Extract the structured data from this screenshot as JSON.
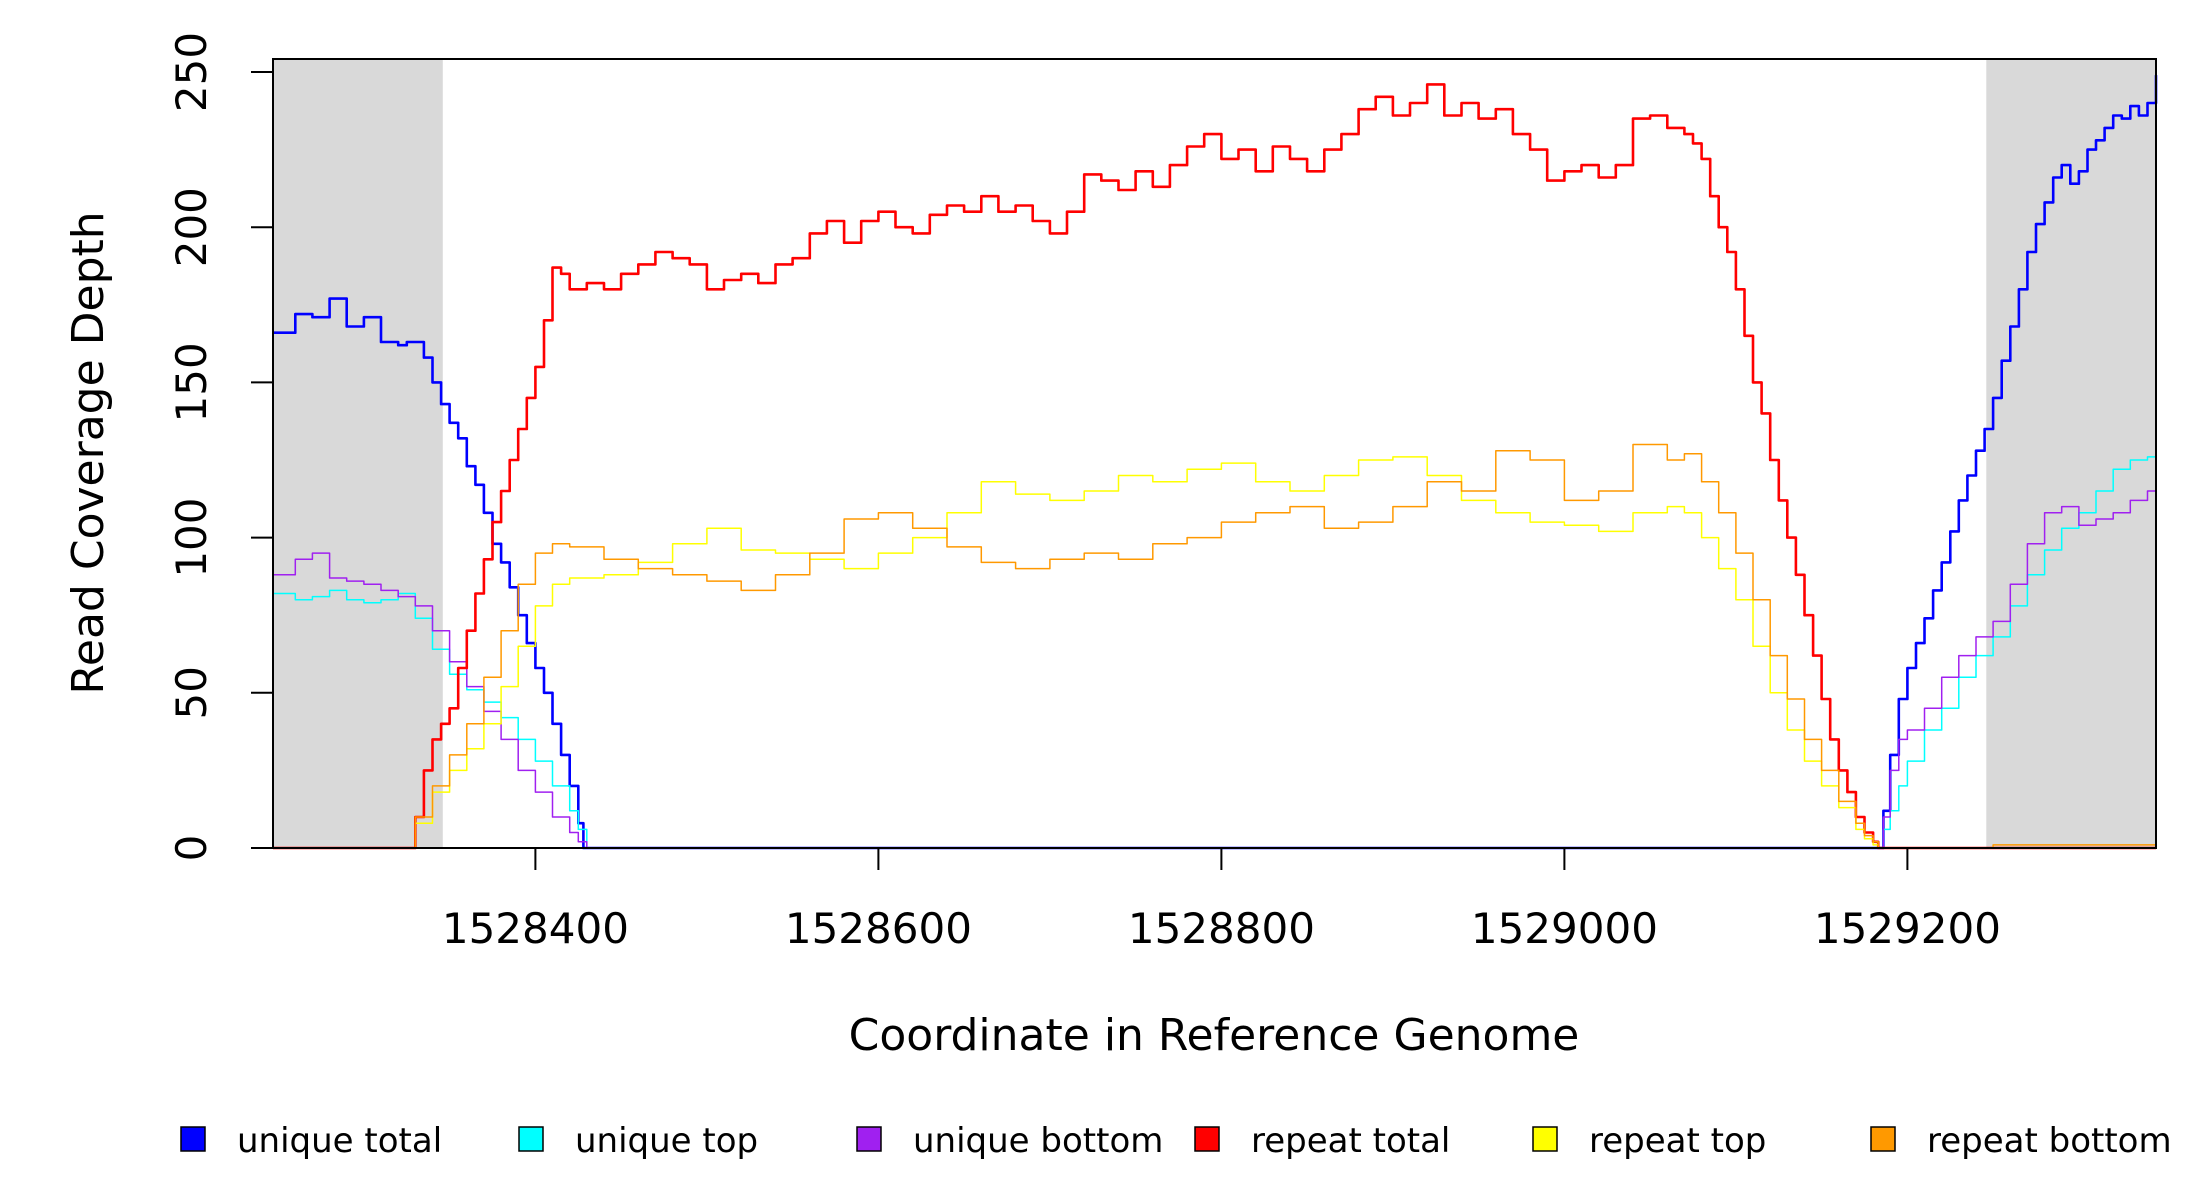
{
  "chart_data": {
    "type": "line",
    "title": "",
    "xlabel": "Coordinate in Reference Genome",
    "ylabel": "Read Coverage Depth",
    "xlim": [
      1528246,
      1529346
    ],
    "ylim": [
      0,
      250
    ],
    "x_ticks": [
      1528400,
      1528600,
      1528800,
      1529000,
      1529200
    ],
    "x_tick_labels": [
      "1528400",
      "1528600",
      "1528800",
      "1529000",
      "1529200"
    ],
    "y_ticks": [
      0,
      50,
      100,
      150,
      200,
      250
    ],
    "y_tick_labels": [
      "0",
      "50",
      "100",
      "150",
      "200",
      "250"
    ],
    "grid": false,
    "legend_position": "bottom",
    "shaded_regions": [
      {
        "x_start": 1528246,
        "x_end": 1528346,
        "color": "#d9d9d9"
      },
      {
        "x_start": 1529246,
        "x_end": 1529346,
        "color": "#d9d9d9"
      }
    ],
    "series": [
      {
        "name": "unique total",
        "color": "#0000ff",
        "stroke_width": 2.6,
        "x": [
          1528246,
          1528260,
          1528270,
          1528280,
          1528290,
          1528300,
          1528310,
          1528320,
          1528325,
          1528330,
          1528335,
          1528340,
          1528345,
          1528350,
          1528355,
          1528360,
          1528365,
          1528370,
          1528375,
          1528380,
          1528385,
          1528390,
          1528395,
          1528400,
          1528405,
          1528410,
          1528415,
          1528420,
          1528425,
          1528428,
          1529183,
          1529186,
          1529190,
          1529195,
          1529200,
          1529205,
          1529210,
          1529215,
          1529220,
          1529225,
          1529230,
          1529235,
          1529240,
          1529245,
          1529250,
          1529255,
          1529260,
          1529265,
          1529270,
          1529275,
          1529280,
          1529285,
          1529290,
          1529295,
          1529300,
          1529305,
          1529310,
          1529315,
          1529320,
          1529325,
          1529330,
          1529335,
          1529340,
          1529346
        ],
        "y": [
          166,
          172,
          171,
          177,
          168,
          171,
          163,
          162,
          163,
          163,
          158,
          150,
          143,
          137,
          132,
          123,
          117,
          108,
          98,
          92,
          84,
          75,
          66,
          58,
          50,
          40,
          30,
          20,
          8,
          0,
          0,
          12,
          30,
          48,
          58,
          66,
          74,
          83,
          92,
          102,
          112,
          120,
          128,
          135,
          145,
          157,
          168,
          180,
          192,
          201,
          208,
          216,
          220,
          214,
          218,
          225,
          228,
          232,
          236,
          235,
          239,
          236,
          240,
          249
        ]
      },
      {
        "name": "unique top",
        "color": "#00ffff",
        "stroke_width": 1.5,
        "x": [
          1528246,
          1528260,
          1528270,
          1528280,
          1528290,
          1528300,
          1528310,
          1528320,
          1528330,
          1528340,
          1528350,
          1528360,
          1528370,
          1528380,
          1528390,
          1528400,
          1528410,
          1528420,
          1528425,
          1528430,
          1529183,
          1529186,
          1529190,
          1529195,
          1529200,
          1529210,
          1529220,
          1529230,
          1529240,
          1529250,
          1529260,
          1529270,
          1529280,
          1529290,
          1529300,
          1529310,
          1529320,
          1529330,
          1529340,
          1529346
        ],
        "y": [
          82,
          80,
          81,
          83,
          80,
          79,
          80,
          82,
          74,
          64,
          56,
          51,
          47,
          42,
          35,
          28,
          20,
          12,
          6,
          0,
          0,
          6,
          12,
          20,
          28,
          38,
          45,
          55,
          62,
          68,
          78,
          88,
          96,
          103,
          108,
          115,
          122,
          125,
          126,
          128
        ]
      },
      {
        "name": "unique bottom",
        "color": "#a020f0",
        "stroke_width": 1.5,
        "x": [
          1528246,
          1528260,
          1528270,
          1528280,
          1528290,
          1528300,
          1528310,
          1528320,
          1528330,
          1528340,
          1528350,
          1528360,
          1528370,
          1528380,
          1528390,
          1528400,
          1528410,
          1528420,
          1528425,
          1528430,
          1529183,
          1529186,
          1529190,
          1529195,
          1529200,
          1529210,
          1529220,
          1529230,
          1529240,
          1529250,
          1529260,
          1529270,
          1529280,
          1529290,
          1529300,
          1529310,
          1529320,
          1529330,
          1529340,
          1529346
        ],
        "y": [
          88,
          93,
          95,
          87,
          86,
          85,
          83,
          81,
          78,
          70,
          60,
          52,
          44,
          35,
          25,
          18,
          10,
          5,
          2,
          0,
          0,
          10,
          25,
          35,
          38,
          45,
          55,
          62,
          68,
          73,
          85,
          98,
          108,
          110,
          104,
          106,
          108,
          112,
          115,
          119
        ]
      },
      {
        "name": "repeat total",
        "color": "#ff0000",
        "stroke_width": 2.6,
        "x": [
          1528246,
          1528325,
          1528330,
          1528335,
          1528340,
          1528345,
          1528350,
          1528355,
          1528360,
          1528365,
          1528370,
          1528375,
          1528380,
          1528385,
          1528390,
          1528395,
          1528400,
          1528405,
          1528410,
          1528415,
          1528420,
          1528430,
          1528440,
          1528450,
          1528460,
          1528470,
          1528480,
          1528490,
          1528500,
          1528510,
          1528520,
          1528530,
          1528540,
          1528550,
          1528560,
          1528570,
          1528580,
          1528590,
          1528600,
          1528610,
          1528620,
          1528630,
          1528640,
          1528650,
          1528660,
          1528670,
          1528680,
          1528690,
          1528700,
          1528710,
          1528720,
          1528730,
          1528740,
          1528750,
          1528760,
          1528770,
          1528780,
          1528790,
          1528800,
          1528810,
          1528820,
          1528830,
          1528840,
          1528850,
          1528860,
          1528870,
          1528880,
          1528890,
          1528900,
          1528910,
          1528920,
          1528930,
          1528940,
          1528950,
          1528960,
          1528970,
          1528980,
          1528990,
          1529000,
          1529010,
          1529020,
          1529030,
          1529040,
          1529050,
          1529060,
          1529070,
          1529075,
          1529080,
          1529085,
          1529090,
          1529095,
          1529100,
          1529105,
          1529110,
          1529115,
          1529120,
          1529125,
          1529130,
          1529135,
          1529140,
          1529145,
          1529150,
          1529155,
          1529160,
          1529165,
          1529170,
          1529175,
          1529180,
          1529183,
          1529346
        ],
        "y": [
          0,
          0,
          10,
          25,
          35,
          40,
          45,
          58,
          70,
          82,
          93,
          105,
          115,
          125,
          135,
          145,
          155,
          170,
          187,
          185,
          180,
          182,
          180,
          185,
          188,
          192,
          190,
          188,
          180,
          183,
          185,
          182,
          188,
          190,
          198,
          202,
          195,
          202,
          205,
          200,
          198,
          204,
          207,
          205,
          210,
          205,
          207,
          202,
          198,
          205,
          217,
          215,
          212,
          218,
          213,
          220,
          226,
          230,
          222,
          225,
          218,
          226,
          222,
          218,
          225,
          230,
          238,
          242,
          236,
          240,
          246,
          236,
          240,
          235,
          238,
          230,
          225,
          215,
          218,
          220,
          216,
          220,
          235,
          236,
          232,
          230,
          227,
          222,
          210,
          200,
          192,
          180,
          165,
          150,
          140,
          125,
          112,
          100,
          88,
          75,
          62,
          48,
          35,
          25,
          18,
          10,
          5,
          2,
          0,
          0
        ]
      },
      {
        "name": "repeat top",
        "color": "#ffff00",
        "stroke_width": 1.5,
        "x": [
          1528246,
          1528325,
          1528330,
          1528340,
          1528350,
          1528360,
          1528370,
          1528380,
          1528390,
          1528400,
          1528410,
          1528420,
          1528440,
          1528460,
          1528480,
          1528500,
          1528520,
          1528540,
          1528560,
          1528580,
          1528600,
          1528620,
          1528640,
          1528660,
          1528680,
          1528700,
          1528720,
          1528740,
          1528760,
          1528780,
          1528800,
          1528820,
          1528840,
          1528860,
          1528880,
          1528900,
          1528920,
          1528940,
          1528960,
          1528980,
          1529000,
          1529020,
          1529040,
          1529060,
          1529070,
          1529080,
          1529090,
          1529100,
          1529110,
          1529120,
          1529130,
          1529140,
          1529150,
          1529160,
          1529170,
          1529175,
          1529180,
          1529183,
          1529346
        ],
        "y": [
          0,
          0,
          8,
          18,
          25,
          32,
          40,
          52,
          65,
          78,
          85,
          87,
          88,
          92,
          98,
          103,
          96,
          95,
          93,
          90,
          95,
          100,
          108,
          118,
          114,
          112,
          115,
          120,
          118,
          122,
          124,
          118,
          115,
          120,
          125,
          126,
          120,
          112,
          108,
          105,
          104,
          102,
          108,
          110,
          108,
          100,
          90,
          80,
          65,
          50,
          38,
          28,
          20,
          13,
          6,
          3,
          1,
          0,
          0
        ]
      },
      {
        "name": "repeat bottom",
        "color": "#ff9900",
        "stroke_width": 1.5,
        "x": [
          1528246,
          1528325,
          1528330,
          1528340,
          1528350,
          1528360,
          1528370,
          1528380,
          1528390,
          1528400,
          1528410,
          1528420,
          1528440,
          1528460,
          1528480,
          1528500,
          1528520,
          1528540,
          1528560,
          1528580,
          1528600,
          1528620,
          1528640,
          1528660,
          1528680,
          1528700,
          1528720,
          1528740,
          1528760,
          1528780,
          1528800,
          1528820,
          1528840,
          1528860,
          1528880,
          1528900,
          1528920,
          1528940,
          1528960,
          1528980,
          1529000,
          1529020,
          1529040,
          1529060,
          1529070,
          1529080,
          1529090,
          1529100,
          1529110,
          1529120,
          1529130,
          1529140,
          1529150,
          1529160,
          1529170,
          1529175,
          1529180,
          1529183,
          1529250,
          1529270,
          1529346
        ],
        "y": [
          0,
          0,
          10,
          20,
          30,
          40,
          55,
          70,
          85,
          95,
          98,
          97,
          93,
          90,
          88,
          86,
          83,
          88,
          95,
          106,
          108,
          103,
          97,
          92,
          90,
          93,
          95,
          93,
          98,
          100,
          105,
          108,
          110,
          103,
          105,
          110,
          118,
          115,
          128,
          125,
          112,
          115,
          130,
          125,
          127,
          118,
          108,
          95,
          80,
          62,
          48,
          35,
          25,
          15,
          8,
          4,
          2,
          0,
          1,
          1,
          0
        ]
      }
    ]
  }
}
